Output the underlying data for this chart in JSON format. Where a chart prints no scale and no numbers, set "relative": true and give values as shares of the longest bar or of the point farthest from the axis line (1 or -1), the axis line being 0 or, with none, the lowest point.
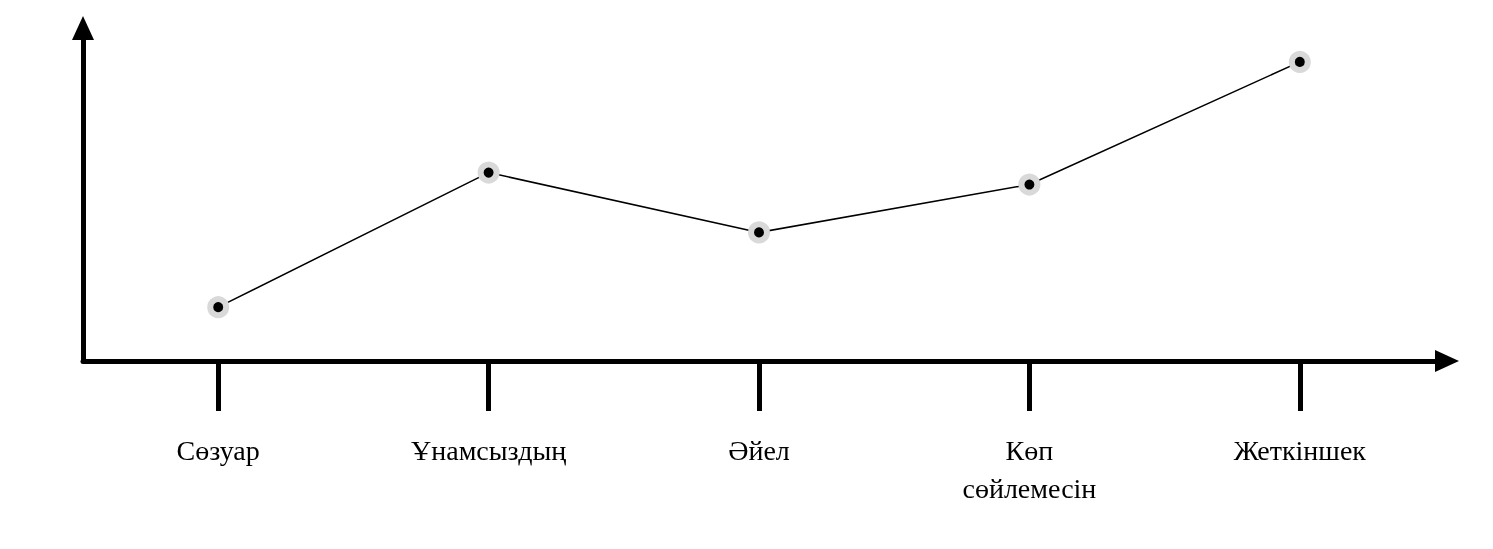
{
  "chart_data": {
    "type": "line",
    "relative": true,
    "categories": [
      "Сөзуар",
      "Ұнамсыздың",
      "Әйел",
      "Көп сөйлемесін",
      "Жеткіншек"
    ],
    "series": [
      {
        "color": "#000000",
        "values": [
          0.18,
          0.63,
          0.43,
          0.59,
          1
        ]
      }
    ],
    "marker": "circle",
    "line_style": "solid",
    "grid": false
  }
}
